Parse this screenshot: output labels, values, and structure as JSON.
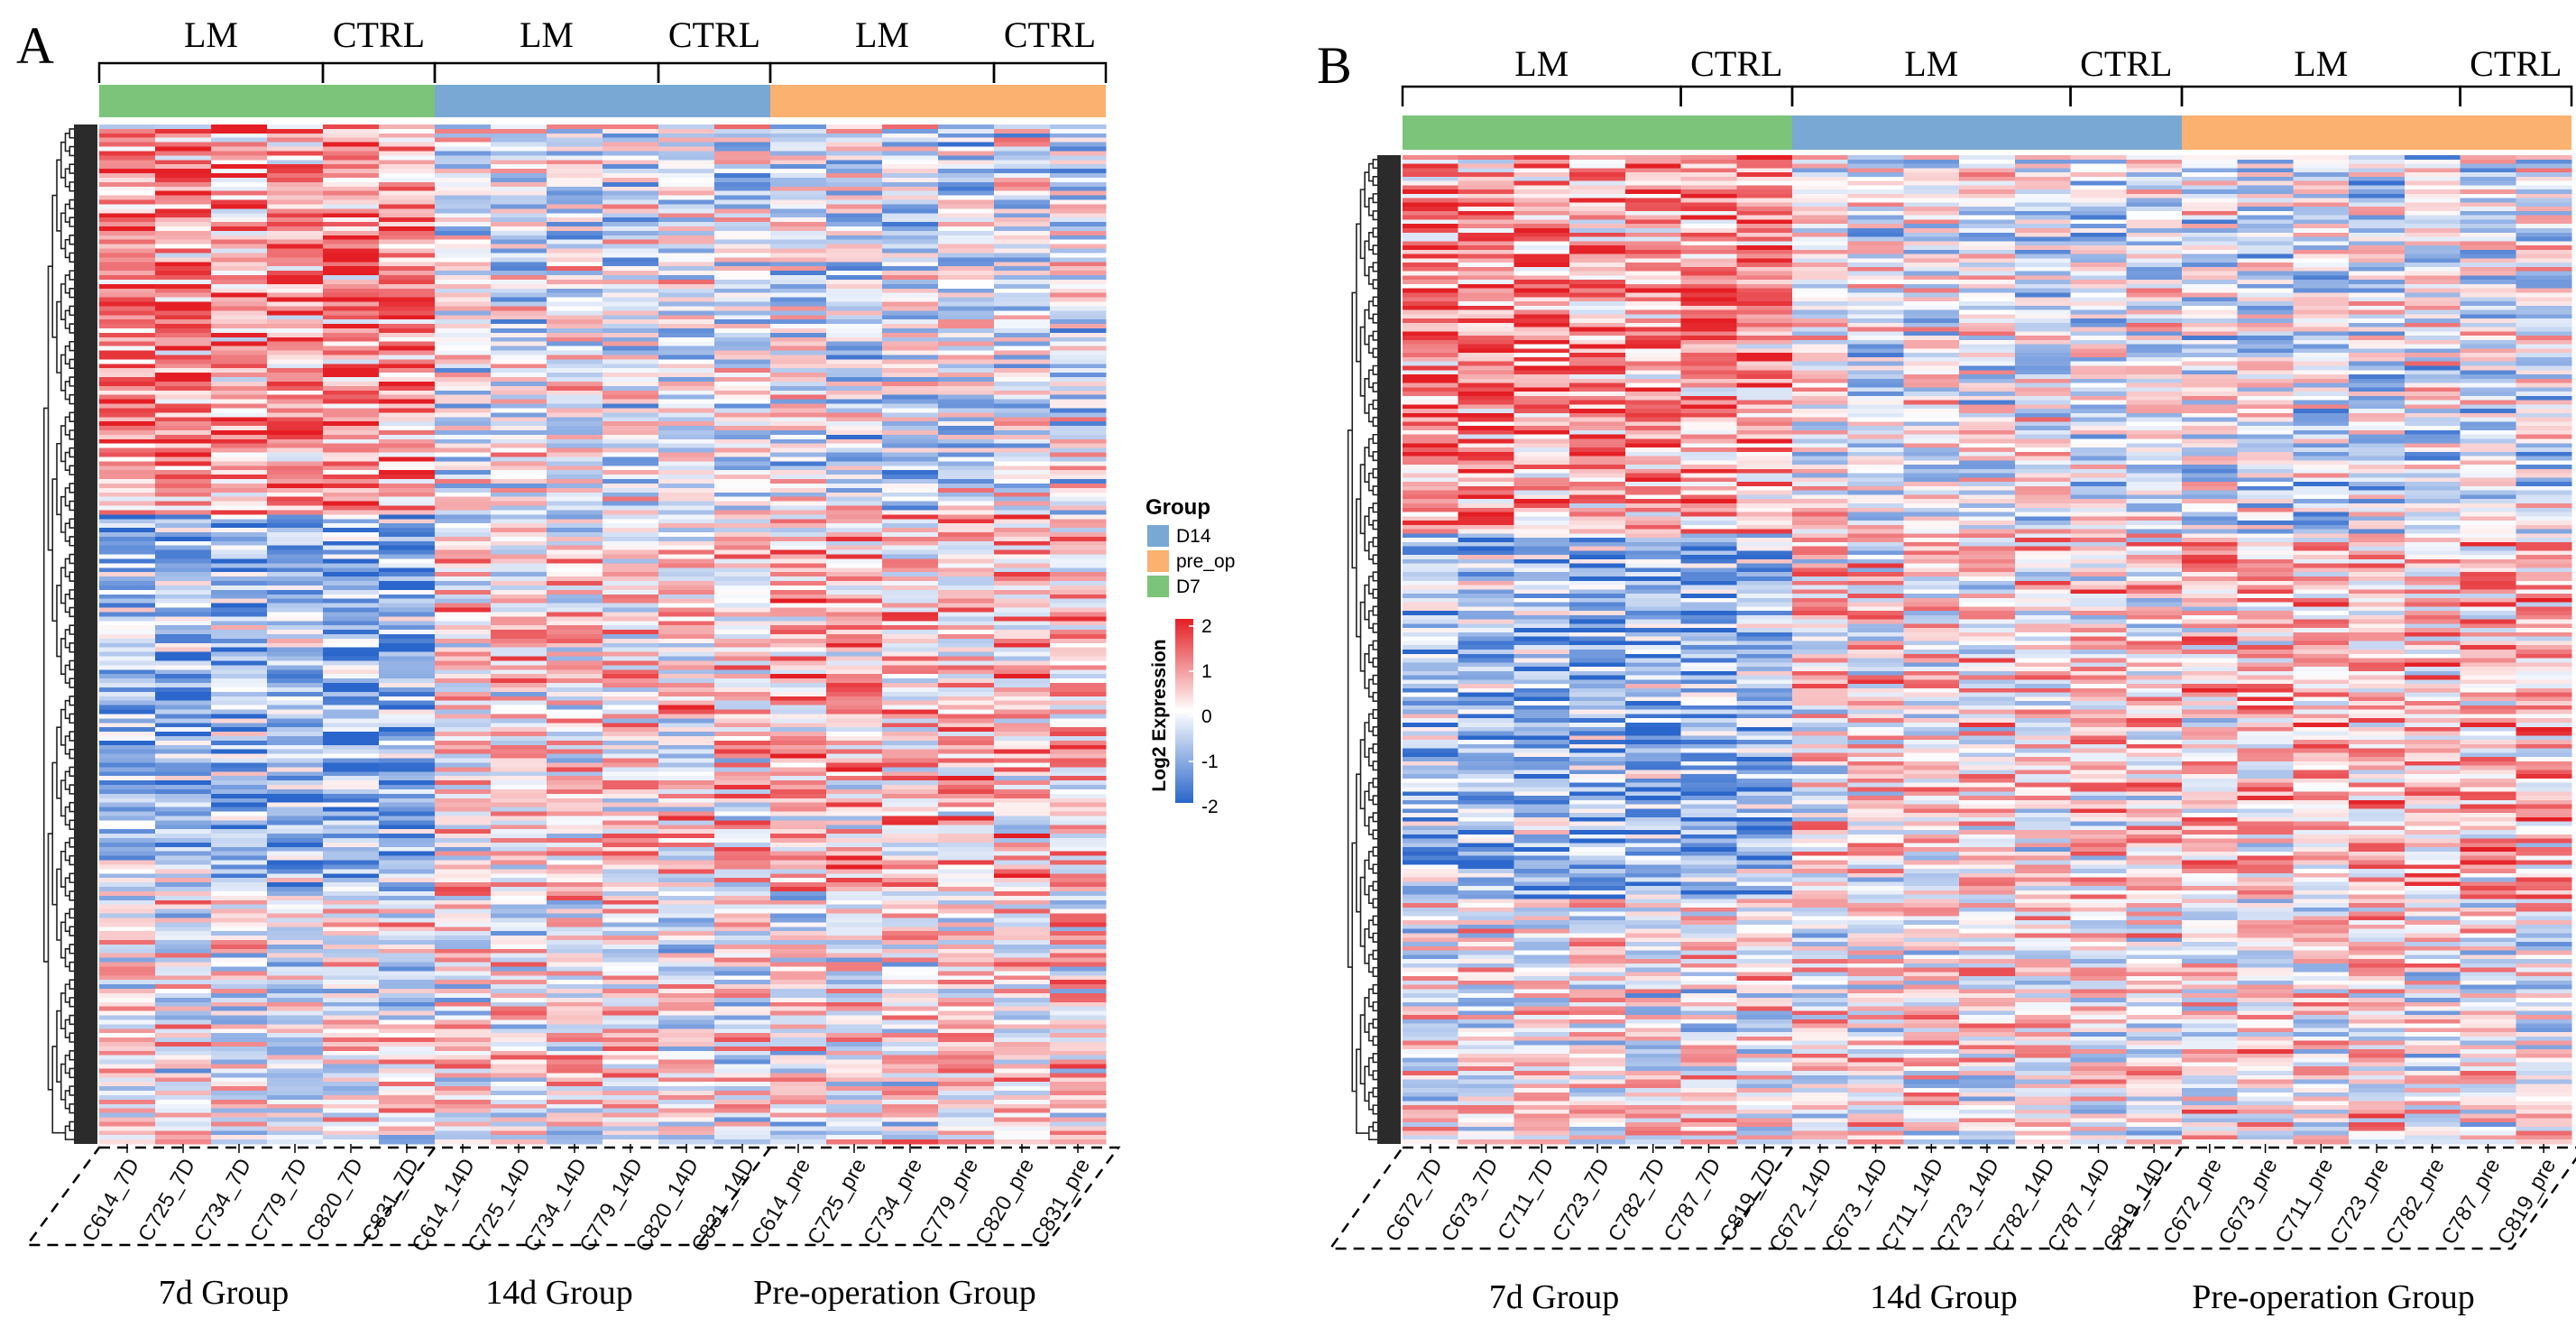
{
  "chart_data": [
    {
      "type": "heatmap",
      "panel_label": "A",
      "subgroups": [
        {
          "label": "LM",
          "n": 4
        },
        {
          "label": "CTRL",
          "n": 2
        },
        {
          "label": "LM",
          "n": 4
        },
        {
          "label": "CTRL",
          "n": 2
        },
        {
          "label": "LM",
          "n": 4
        },
        {
          "label": "CTRL",
          "n": 2
        }
      ],
      "groups": [
        {
          "label": "7d Group",
          "key": "D7",
          "n": 6
        },
        {
          "label": "14d Group",
          "key": "D14",
          "n": 6
        },
        {
          "label": "Pre-operation  Group",
          "key": "pre_op",
          "n": 6
        }
      ],
      "columns": [
        "C614_7D",
        "C725_7D",
        "C734_7D",
        "C779_7D",
        "C820_7D",
        "C831_7D",
        "C614_14D",
        "C725_14D",
        "C734_14D",
        "C779_14D",
        "C820_14D",
        "C831_14D",
        "C614_pre",
        "C725_pre",
        "C734_pre",
        "C779_pre",
        "C820_pre",
        "C831_pre"
      ],
      "rows_approx": 230,
      "color_range": [
        -2,
        2
      ]
    },
    {
      "type": "heatmap",
      "panel_label": "B",
      "subgroups": [
        {
          "label": "LM",
          "n": 5
        },
        {
          "label": "CTRL",
          "n": 2
        },
        {
          "label": "LM",
          "n": 5
        },
        {
          "label": "CTRL",
          "n": 2
        },
        {
          "label": "LM",
          "n": 5
        },
        {
          "label": "CTRL",
          "n": 2
        }
      ],
      "groups": [
        {
          "label": "7d Group",
          "key": "D7",
          "n": 7
        },
        {
          "label": "14d Group",
          "key": "D14",
          "n": 7
        },
        {
          "label": "Pre-operation  Group",
          "key": "pre_op",
          "n": 7
        }
      ],
      "columns": [
        "C672_7D",
        "C673_7D",
        "C711_7D",
        "C723_7D",
        "C782_7D",
        "C787_7D",
        "C819_7D",
        "C672_14D",
        "C673_14D",
        "C711_14D",
        "C723_14D",
        "C782_14D",
        "C787_14D",
        "C819_14D",
        "C672_pre",
        "C673_pre",
        "C711_pre",
        "C723_pre",
        "C782_pre",
        "C787_pre",
        "C819_pre"
      ],
      "rows_approx": 230,
      "color_range": [
        -2,
        2
      ]
    }
  ],
  "legend": {
    "group_title": "Group",
    "group_items": [
      {
        "key": "D14",
        "label": "D14",
        "color": "#79A8D4"
      },
      {
        "key": "pre_op",
        "label": "pre_op",
        "color": "#FBB16F"
      },
      {
        "key": "D7",
        "label": "D7",
        "color": "#7CC47A"
      }
    ],
    "scale_title": "Log2 Expression",
    "scale_ticks": [
      "2",
      "1",
      "0",
      "-1",
      "-2"
    ],
    "scale_colors": [
      "#E41E24",
      "#FFFFFF",
      "#2A66CB"
    ]
  }
}
